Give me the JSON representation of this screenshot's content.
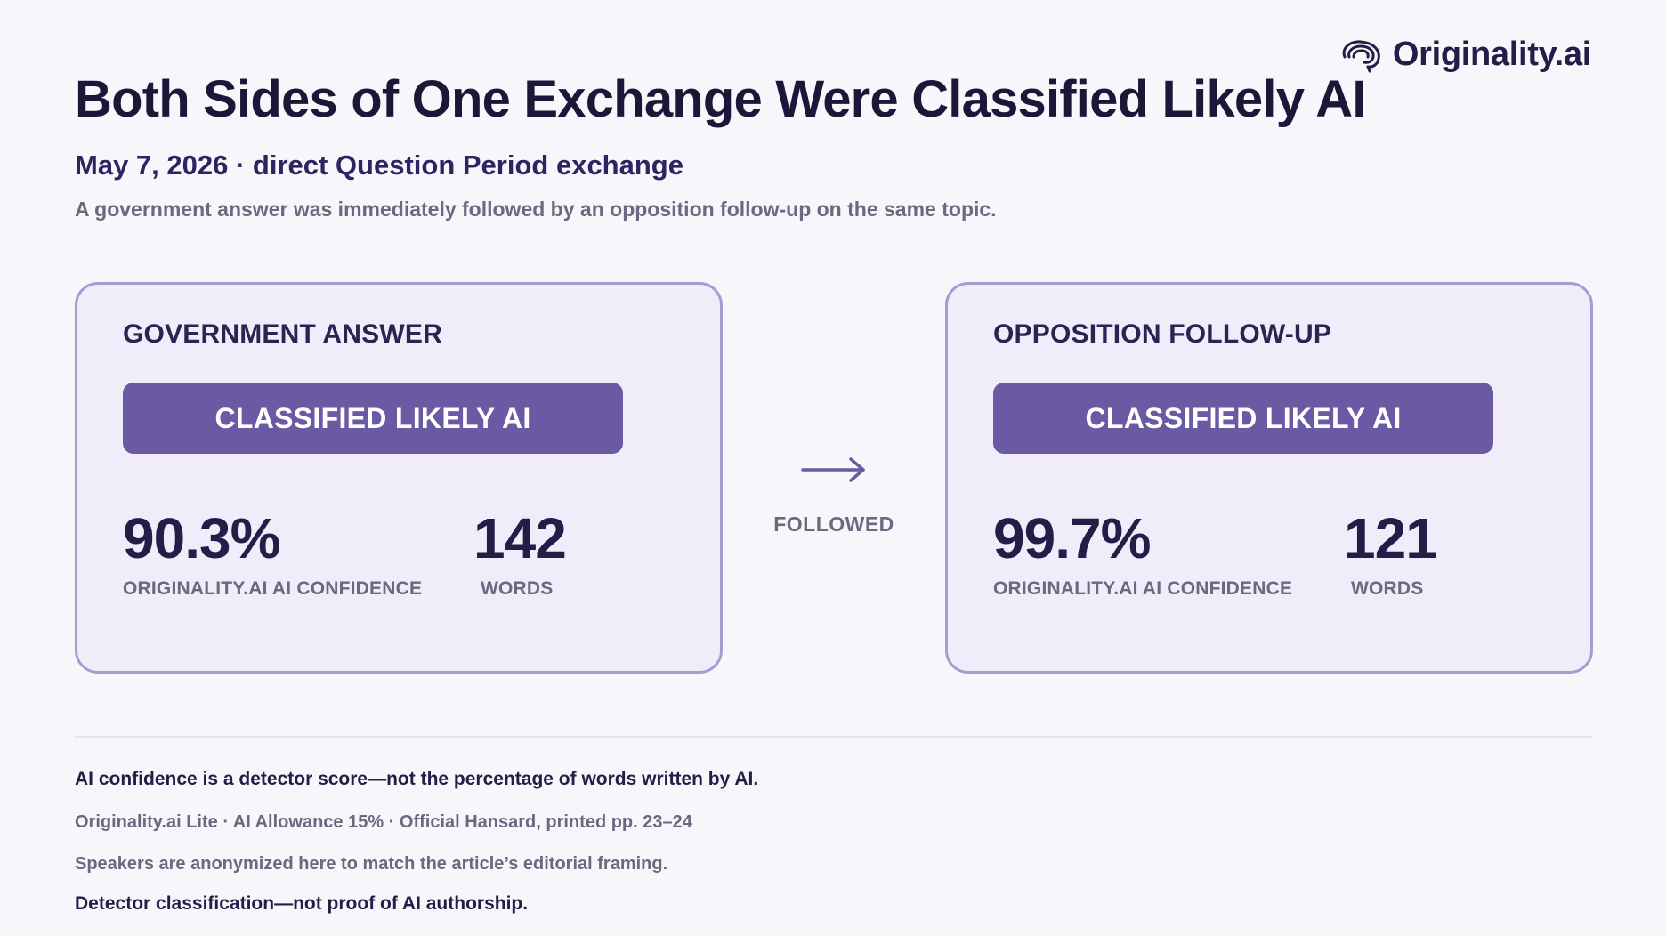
{
  "brand": {
    "name": "Originality.ai",
    "icon": "brain-logo-icon"
  },
  "header": {
    "title": "Both Sides of One Exchange Were Classified Likely AI",
    "subtitle": "May 7, 2026 · direct Question Period exchange",
    "description": "A government answer was immediately followed by an opposition follow-up on the same topic."
  },
  "cards": [
    {
      "heading": "GOVERNMENT ANSWER",
      "verdict": "CLASSIFIED LIKELY AI",
      "confidence": "90.3%",
      "confidence_label": "ORIGINALITY.AI AI CONFIDENCE",
      "words": "142",
      "words_label": "WORDS"
    },
    {
      "heading": "OPPOSITION FOLLOW-UP",
      "verdict": "CLASSIFIED LIKELY AI",
      "confidence": "99.7%",
      "confidence_label": "ORIGINALITY.AI AI CONFIDENCE",
      "words": "121",
      "words_label": "WORDS"
    }
  ],
  "connector": {
    "icon": "arrow-right-icon",
    "label": "FOLLOWED"
  },
  "footer": {
    "note1": "AI confidence is a detector score—not the percentage of words written by AI.",
    "note2": "Originality.ai Lite · AI Allowance 15% · Official Hansard, printed pp. 23–24",
    "note3": "Speakers are anonymized here to match the article’s editorial framing.",
    "note4": "Detector classification—not proof of AI authorship."
  },
  "colors": {
    "background": "#f7f7fb",
    "card_fill": "#f1ecf9",
    "card_border": "#a99ad2",
    "accent": "#6a5aa3",
    "text_dark": "#231d47",
    "text_muted": "#6b6880"
  }
}
